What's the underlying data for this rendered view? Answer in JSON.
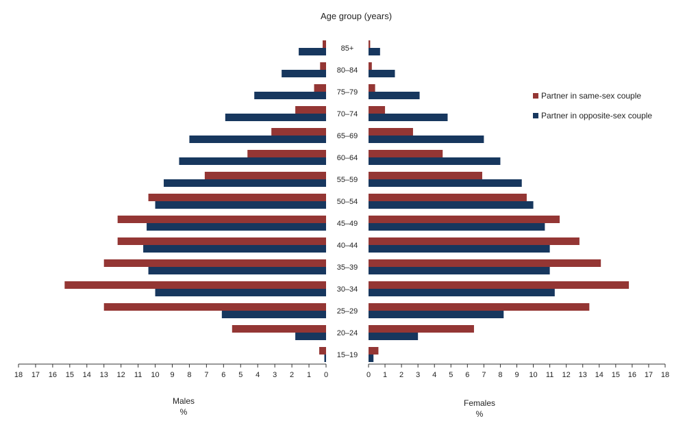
{
  "chart_data": {
    "type": "bar",
    "orientation": "horizontal-pyramid",
    "title": "Age group (years)",
    "categories": [
      "15–19",
      "20–24",
      "25–29",
      "30–34",
      "35–39",
      "40–44",
      "45–49",
      "50–54",
      "55–59",
      "60–64",
      "65–69",
      "70–74",
      "75–79",
      "80–84",
      "85+"
    ],
    "left_panel": {
      "label": "Males",
      "unit": "%"
    },
    "right_panel": {
      "label": "Females",
      "unit": "%"
    },
    "xlim": [
      0,
      18
    ],
    "x_ticks": [
      0,
      1,
      2,
      3,
      4,
      5,
      6,
      7,
      8,
      9,
      10,
      11,
      12,
      13,
      14,
      15,
      16,
      17,
      18
    ],
    "legend": {
      "position": "top-right"
    },
    "series": [
      {
        "name": "Partner in same-sex couple",
        "color": "#943634",
        "males": [
          0.4,
          5.5,
          13.0,
          15.3,
          13.0,
          12.2,
          12.2,
          10.4,
          7.1,
          4.6,
          3.2,
          1.8,
          0.7,
          0.35,
          0.2
        ],
        "females": [
          0.6,
          6.4,
          13.4,
          15.8,
          14.1,
          12.8,
          11.6,
          9.6,
          6.9,
          4.5,
          2.7,
          1.0,
          0.4,
          0.2,
          0.1
        ]
      },
      {
        "name": "Partner in opposite-sex couple",
        "color": "#17375e",
        "males": [
          0.1,
          1.8,
          6.1,
          10.0,
          10.4,
          10.7,
          10.5,
          10.0,
          9.5,
          8.6,
          8.0,
          5.9,
          4.2,
          2.6,
          1.6
        ],
        "females": [
          0.3,
          3.0,
          8.2,
          11.3,
          11.0,
          11.0,
          10.7,
          10.0,
          9.3,
          8.0,
          7.0,
          4.8,
          3.1,
          1.6,
          0.7
        ]
      }
    ]
  }
}
